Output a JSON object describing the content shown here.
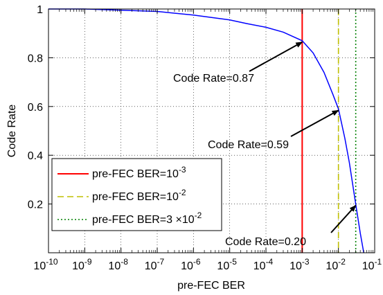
{
  "chart_data": {
    "type": "line",
    "xlabel": "pre-FEC BER",
    "ylabel": "Code Rate",
    "xscale": "log",
    "xlim": [
      1e-10,
      0.1
    ],
    "ylim": [
      0,
      1
    ],
    "grid": "dotted",
    "x_ticks": [
      {
        "base": "10",
        "exp": "-10"
      },
      {
        "base": "10",
        "exp": "-9"
      },
      {
        "base": "10",
        "exp": "-8"
      },
      {
        "base": "10",
        "exp": "-7"
      },
      {
        "base": "10",
        "exp": "-6"
      },
      {
        "base": "10",
        "exp": "-5"
      },
      {
        "base": "10",
        "exp": "-4"
      },
      {
        "base": "10",
        "exp": "-3"
      },
      {
        "base": "10",
        "exp": "-2"
      },
      {
        "base": "10",
        "exp": "-1"
      }
    ],
    "y_ticks": [
      "0.2",
      "0.4",
      "0.6",
      "0.8",
      "1"
    ],
    "y_tick_values": [
      0.2,
      0.4,
      0.6,
      0.8,
      1.0
    ],
    "curve": {
      "color": "#0000ff",
      "x": [
        1e-10,
        1e-09,
        1e-08,
        1e-07,
        1e-06,
        1e-05,
        3e-05,
        0.0001,
        0.0003,
        0.001,
        0.002,
        0.004,
        0.007,
        0.01,
        0.015,
        0.02,
        0.03,
        0.04,
        0.05
      ],
      "y": [
        1.0,
        1.0,
        0.995,
        0.99,
        0.975,
        0.955,
        0.94,
        0.925,
        0.905,
        0.87,
        0.82,
        0.74,
        0.65,
        0.59,
        0.47,
        0.37,
        0.2,
        0.08,
        0.0
      ]
    },
    "vlines": [
      {
        "x": 0.001,
        "color": "#ff0000",
        "style": "solid",
        "label": "pre-FEC BER=10",
        "exp": "-3"
      },
      {
        "x": 0.01,
        "color": "#bfbf00",
        "style": "dashed",
        "label": "pre-FEC BER=10",
        "exp": "-2"
      },
      {
        "x": 0.03,
        "color": "#008000",
        "style": "dotted",
        "label": "pre-FEC BER=3 ×10",
        "exp": "-2"
      }
    ],
    "legend_position": "lower-left",
    "annotations": [
      {
        "text": "Code Rate=0.87",
        "x": 0.001,
        "y": 0.87
      },
      {
        "text": "Code Rate=0.59",
        "x": 0.01,
        "y": 0.59
      },
      {
        "text": "Code Rate=0.20",
        "x": 0.03,
        "y": 0.2
      }
    ]
  }
}
